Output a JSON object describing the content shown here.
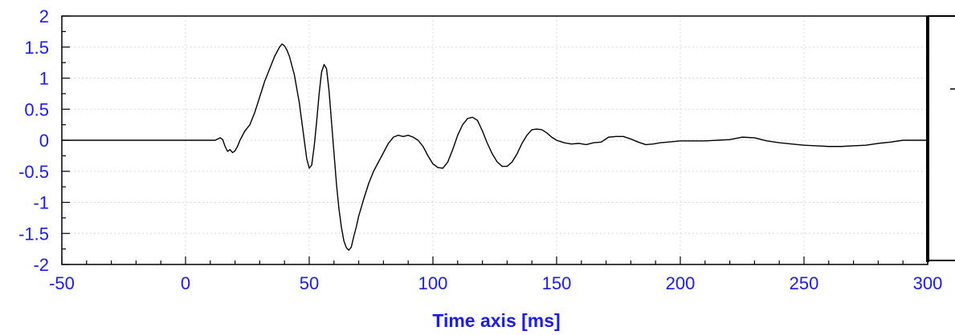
{
  "chart_data": {
    "type": "line",
    "title": "",
    "xlabel": "Time axis [ms]",
    "ylabel": "",
    "xlim": [
      -50,
      300
    ],
    "ylim": [
      -2,
      2
    ],
    "x_ticks": [
      -50,
      0,
      50,
      100,
      150,
      200,
      250,
      300
    ],
    "x_tick_labels": [
      "-50",
      "0",
      "50",
      "100",
      "150",
      "200",
      "250",
      "300"
    ],
    "y_ticks": [
      2,
      1.5,
      1,
      0.5,
      0,
      -0.5,
      -1,
      -1.5,
      -2
    ],
    "y_tick_labels": [
      "2",
      "1.5",
      "1",
      "0.5",
      "0",
      "-0.5",
      "-1",
      "-1.5",
      "-2"
    ],
    "grid": true,
    "colors": {
      "tick_labels": "#1a1aff",
      "axis_title": "#1a1aff",
      "line": "#000000"
    },
    "series": [
      {
        "x": [
          -50,
          0,
          12,
          13,
          14,
          15,
          16,
          17,
          18,
          19,
          20,
          21,
          22,
          24,
          26,
          28,
          30,
          32,
          34,
          36,
          38,
          39,
          40,
          41,
          42,
          44,
          46,
          48,
          49,
          50,
          51,
          52,
          53,
          54,
          55,
          56,
          57,
          58,
          59,
          60,
          61,
          62,
          63,
          64,
          65,
          66,
          67,
          68,
          69,
          70,
          72,
          74,
          76,
          78,
          80,
          82,
          84,
          86,
          88,
          90,
          92,
          94,
          96,
          98,
          100,
          102,
          104,
          106,
          108,
          110,
          112,
          114,
          116,
          118,
          120,
          122,
          124,
          126,
          128,
          130,
          132,
          134,
          136,
          138,
          140,
          142,
          144,
          146,
          148,
          150,
          153,
          156,
          159,
          162,
          165,
          168,
          171,
          174,
          177,
          180,
          183,
          186,
          189,
          192,
          195,
          200,
          210,
          215,
          220,
          225,
          230,
          235,
          240,
          245,
          250,
          255,
          260,
          265,
          270,
          275,
          280,
          285,
          290,
          295,
          300
        ],
        "y": [
          0,
          0,
          0,
          0.02,
          0.04,
          0.01,
          -0.1,
          -0.18,
          -0.15,
          -0.2,
          -0.17,
          -0.1,
          0,
          0.15,
          0.25,
          0.45,
          0.7,
          0.95,
          1.15,
          1.35,
          1.5,
          1.55,
          1.52,
          1.45,
          1.35,
          1.05,
          0.6,
          0.0,
          -0.3,
          -0.45,
          -0.4,
          -0.1,
          0.3,
          0.75,
          1.1,
          1.22,
          1.15,
          0.8,
          0.3,
          -0.2,
          -0.7,
          -1.1,
          -1.4,
          -1.62,
          -1.73,
          -1.77,
          -1.72,
          -1.55,
          -1.4,
          -1.22,
          -0.95,
          -0.7,
          -0.5,
          -0.35,
          -0.2,
          -0.05,
          0.05,
          0.08,
          0.06,
          0.08,
          0.05,
          0.0,
          -0.1,
          -0.25,
          -0.38,
          -0.44,
          -0.45,
          -0.35,
          -0.15,
          0.08,
          0.25,
          0.35,
          0.37,
          0.32,
          0.15,
          -0.05,
          -0.22,
          -0.35,
          -0.42,
          -0.42,
          -0.35,
          -0.22,
          -0.05,
          0.08,
          0.17,
          0.18,
          0.17,
          0.12,
          0.05,
          0.0,
          -0.04,
          -0.06,
          -0.05,
          -0.07,
          -0.04,
          -0.03,
          0.05,
          0.06,
          0.06,
          0.02,
          -0.03,
          -0.07,
          -0.06,
          -0.04,
          -0.03,
          -0.01,
          -0.01,
          0.0,
          0.01,
          0.05,
          0.04,
          -0.01,
          -0.04,
          -0.06,
          -0.08,
          -0.09,
          -0.1,
          -0.1,
          -0.09,
          -0.08,
          -0.05,
          -0.03,
          0.0,
          0.0,
          0.0
        ]
      }
    ]
  }
}
